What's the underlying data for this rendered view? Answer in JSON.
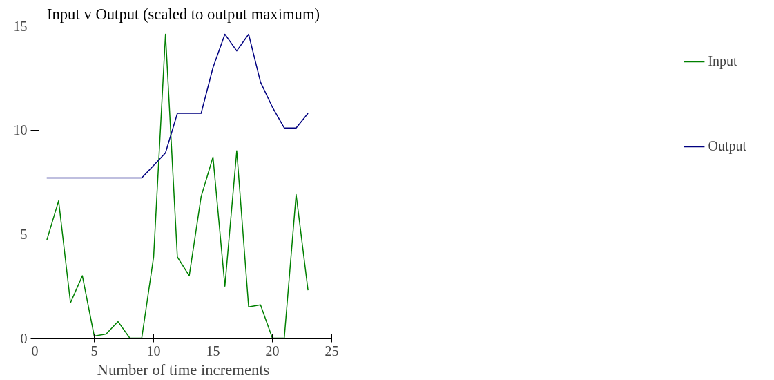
{
  "chart_data": {
    "type": "line",
    "title": "Input v Output (scaled to output maximum)",
    "xlabel": "Number of time increments",
    "x": [
      1,
      2,
      3,
      4,
      5,
      6,
      7,
      8,
      9,
      10,
      11,
      12,
      13,
      14,
      15,
      16,
      17,
      18,
      19,
      20,
      21,
      22,
      23
    ],
    "series": [
      {
        "name": "Input",
        "color": "#008000",
        "values": [
          4.7,
          6.6,
          1.7,
          3.0,
          0.1,
          0.2,
          0.8,
          0.0,
          0.0,
          3.9,
          14.6,
          3.9,
          3.0,
          6.8,
          8.7,
          2.5,
          9.0,
          1.5,
          1.6,
          0.0,
          0.0,
          6.9,
          2.3
        ]
      },
      {
        "name": "Output",
        "color": "#000080",
        "values": [
          7.7,
          7.7,
          7.7,
          7.7,
          7.7,
          7.7,
          7.7,
          7.7,
          7.7,
          8.3,
          8.9,
          10.8,
          10.8,
          10.8,
          13.0,
          14.6,
          13.8,
          14.6,
          12.3,
          11.1,
          10.1,
          10.1,
          10.8
        ]
      }
    ],
    "xlim": [
      0,
      25
    ],
    "xticks": [
      0,
      5,
      10,
      15,
      20,
      25
    ],
    "ylim": [
      0,
      15
    ],
    "yticks": [
      0,
      5,
      10,
      15
    ],
    "grid": false,
    "legend": "right",
    "marker": "none",
    "line_style": "solid"
  }
}
